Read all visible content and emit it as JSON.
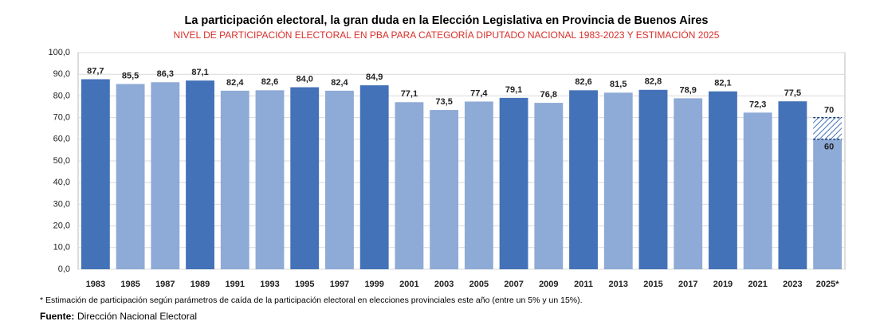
{
  "chart_data": {
    "type": "bar",
    "title": "La participación electoral, la gran duda en la Elección Legislativa en Provincia de Buenos Aires",
    "subtitle": "NIVEL DE PARTICIPACIÓN ELECTORAL EN PBA PARA CATEGORÍA DIPUTADO NACIONAL 1983-2023 Y ESTIMACIÓN 2025",
    "categories": [
      "1983",
      "1985",
      "1987",
      "1989",
      "1991",
      "1993",
      "1995",
      "1997",
      "1999",
      "2001",
      "2003",
      "2005",
      "2007",
      "2009",
      "2011",
      "2013",
      "2015",
      "2017",
      "2019",
      "2021",
      "2023",
      "2025*"
    ],
    "values": [
      87.7,
      85.5,
      86.3,
      87.1,
      82.4,
      82.6,
      84.0,
      82.4,
      84.9,
      77.1,
      73.5,
      77.4,
      79.1,
      76.8,
      82.6,
      81.5,
      82.8,
      78.9,
      82.1,
      72.3,
      77.5,
      null
    ],
    "value_labels": [
      "87,7",
      "85,5",
      "86,3",
      "87,1",
      "82,4",
      "82,6",
      "84,0",
      "82,4",
      "84,9",
      "77,1",
      "73,5",
      "77,4",
      "79,1",
      "76,8",
      "82,6",
      "81,5",
      "82,8",
      "78,9",
      "82,1",
      "72,3",
      "77,5",
      null
    ],
    "bar_colors": [
      "#4472b8",
      "#8eaad6",
      "#8eaad6",
      "#4472b8",
      "#8eaad6",
      "#8eaad6",
      "#4472b8",
      "#8eaad6",
      "#4472b8",
      "#8eaad6",
      "#8eaad6",
      "#8eaad6",
      "#4472b8",
      "#8eaad6",
      "#4472b8",
      "#8eaad6",
      "#4472b8",
      "#8eaad6",
      "#4472b8",
      "#8eaad6",
      "#4472b8",
      "#8eaad6"
    ],
    "estimate": {
      "low": 60,
      "high": 70
    },
    "ylim": [
      0,
      100
    ],
    "yticks": [
      {
        "value": 0,
        "label": "0,0"
      },
      {
        "value": 10,
        "label": "10,0"
      },
      {
        "value": 20,
        "label": "20,0"
      },
      {
        "value": 30,
        "label": "30,0"
      },
      {
        "value": 40,
        "label": "40,0"
      },
      {
        "value": 50,
        "label": "50,0"
      },
      {
        "value": 60,
        "label": "60,0"
      },
      {
        "value": 70,
        "label": "70,0"
      },
      {
        "value": 80,
        "label": "80,0"
      },
      {
        "value": 90,
        "label": "90,0"
      },
      {
        "value": 100,
        "label": "100,0"
      }
    ],
    "grid": true,
    "footnote": "* Estimación de participación según parámetros de caída de la participación electoral en elecciones provinciales este año (entre un 5% y un 15%).",
    "source_label": "Fuente:",
    "source": "Dirección Nacional Electoral"
  }
}
